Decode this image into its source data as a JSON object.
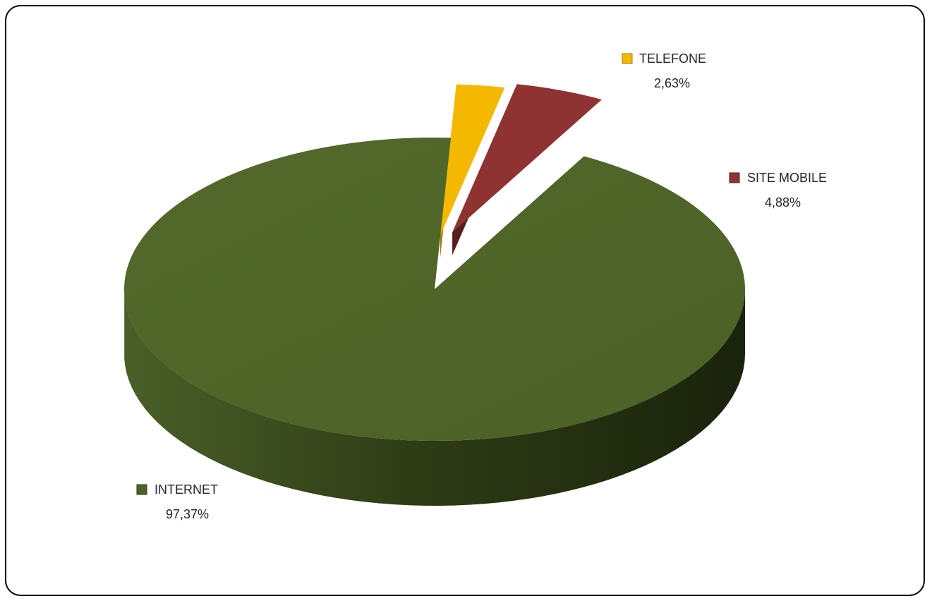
{
  "chart_data": {
    "type": "pie",
    "style": "3d-exploded",
    "categories": [
      "INTERNET",
      "TELEFONE",
      "SITE MOBILE"
    ],
    "values": [
      97.37,
      2.63,
      4.88
    ],
    "value_labels": [
      "97,37%",
      "2,63%",
      "4,88%"
    ],
    "colors": [
      "#4E6128",
      "#F5B800",
      "#8E3232"
    ],
    "side_colors": [
      "#2E3B15",
      "#A57C00",
      "#561E1E"
    ],
    "legend": "inline-labels"
  }
}
